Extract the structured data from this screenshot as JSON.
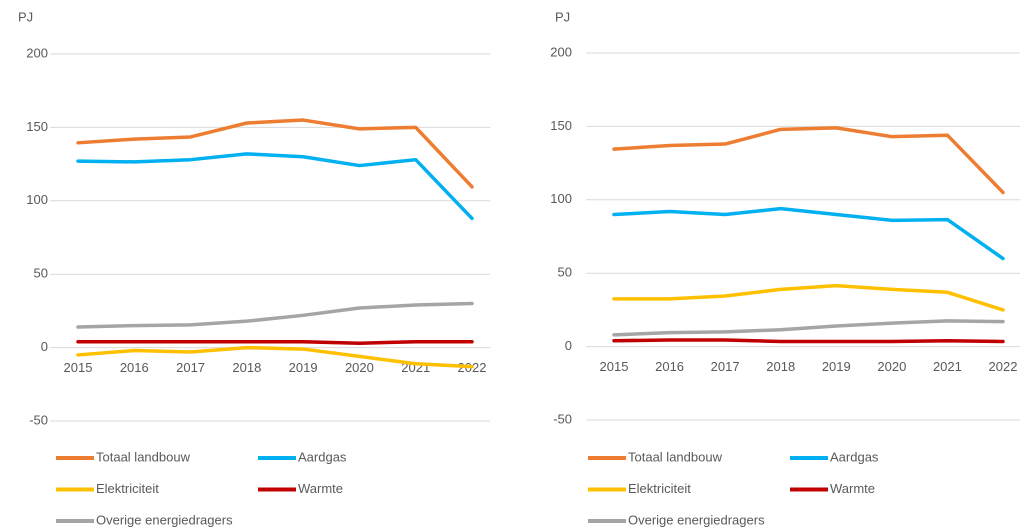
{
  "chart_data": [
    {
      "type": "line",
      "ylabel": "PJ",
      "categories": [
        "2015",
        "2016",
        "2017",
        "2018",
        "2019",
        "2020",
        "2021",
        "2022"
      ],
      "ylim": [
        -50,
        200
      ],
      "yticks": [
        -50,
        0,
        50,
        100,
        150,
        200
      ],
      "grid": true,
      "series": [
        {
          "name": "Totaal landbouw",
          "color": "#ed7d31",
          "values": [
            139.5,
            142,
            143.5,
            153,
            155,
            149,
            150,
            109.5
          ]
        },
        {
          "name": "Aardgas",
          "color": "#00b0f0",
          "values": [
            127,
            126.5,
            128,
            132,
            130,
            124,
            128,
            88
          ]
        },
        {
          "name": "Elektriciteit",
          "color": "#ffc000",
          "values": [
            -5,
            -2,
            -3,
            0,
            -1,
            -6,
            -11,
            -13
          ]
        },
        {
          "name": "Warmte",
          "color": "#c00000",
          "values": [
            4,
            4,
            4,
            4,
            4,
            3,
            4,
            4
          ]
        },
        {
          "name": "Overige energiedragers",
          "color": "#a5a5a5",
          "values": [
            14,
            15,
            15.5,
            18,
            22,
            27,
            29,
            30
          ]
        }
      ]
    },
    {
      "type": "line",
      "ylabel": "PJ",
      "categories": [
        "2015",
        "2016",
        "2017",
        "2018",
        "2019",
        "2020",
        "2021",
        "2022"
      ],
      "ylim": [
        -50,
        200
      ],
      "yticks": [
        -50,
        0,
        50,
        100,
        150,
        200
      ],
      "grid": true,
      "series": [
        {
          "name": "Totaal landbouw",
          "color": "#ed7d31",
          "values": [
            134.5,
            137,
            138,
            148,
            149,
            143,
            144,
            105
          ]
        },
        {
          "name": "Aardgas",
          "color": "#00b0f0",
          "values": [
            90,
            92,
            90,
            94,
            90,
            86,
            86.5,
            60
          ]
        },
        {
          "name": "Elektriciteit",
          "color": "#ffc000",
          "values": [
            32.5,
            32.5,
            34.5,
            39,
            41.5,
            39,
            37,
            25
          ]
        },
        {
          "name": "Warmte",
          "color": "#c00000",
          "values": [
            4,
            4.5,
            4.5,
            3.5,
            3.5,
            3.5,
            4,
            3.5
          ]
        },
        {
          "name": "Overige energiedragers",
          "color": "#a5a5a5",
          "values": [
            8,
            9.5,
            10,
            11.5,
            14,
            16,
            17.5,
            17
          ]
        }
      ]
    }
  ]
}
